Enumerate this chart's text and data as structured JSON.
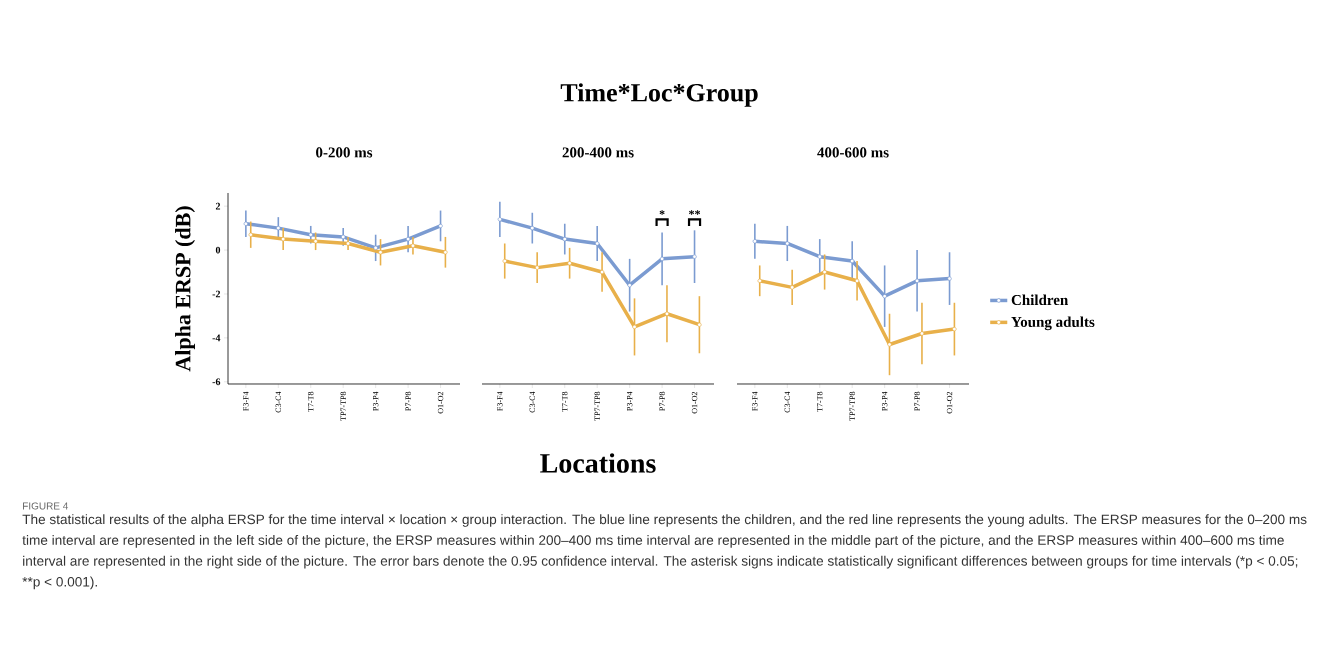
{
  "chart_data": [
    {
      "type": "line",
      "title": "0-200 ms",
      "ylabel": "Alpha ERSP (dB)",
      "categories": [
        "F3-F4",
        "C3-C4",
        "T7-T8",
        "TP7-TP8",
        "P3-P4",
        "P7-P8",
        "O1-O2"
      ],
      "ylim": [
        -6.1,
        2.6
      ],
      "yticks": [
        -6,
        -4,
        -2,
        0,
        2
      ],
      "marker": "circle",
      "line_style": "solid",
      "series": [
        {
          "color": "#7b9bd1",
          "values": [
            1.2,
            1.0,
            0.7,
            0.6,
            0.1,
            0.5,
            1.1
          ],
          "errors": [
            0.6,
            0.5,
            0.4,
            0.4,
            0.6,
            0.6,
            0.7
          ]
        },
        {
          "color": "#e8b04a",
          "values": [
            0.7,
            0.5,
            0.4,
            0.3,
            -0.1,
            0.2,
            -0.1
          ],
          "errors": [
            0.6,
            0.5,
            0.4,
            0.3,
            0.6,
            0.4,
            0.7
          ]
        }
      ],
      "annotations": [
        "Time*Loc*Group",
        "FIGURE 4",
        "The statistical results of the alpha ERSP for the time interval × location × group interaction. The blue line represents the children, and the red line represents the young adults. The ERSP measures for the 0–200 ms time interval are represented in the left side of the picture, the ERSP measures within 200–400 ms time interval are represented in the middle part of the picture, and the ERSP measures within 400–600 ms time interval are represented in the right side of the picture. The error bars denote the 0.95 confidence interval. The asterisk signs indicate statistically significant differences between groups for time intervals (*p < 0.05; **p < 0.001)."
      ]
    },
    {
      "type": "line",
      "title": "200-400 ms",
      "xlabel": "Locations",
      "categories": [
        "F3-F4",
        "C3-C4",
        "T7-T8",
        "TP7-TP8",
        "P3-P4",
        "P7-P8",
        "O1-O2"
      ],
      "yticks": [
        -6,
        -4,
        -2,
        0,
        2
      ],
      "tick_labels": "x",
      "marker": "circle",
      "line_style": "solid",
      "series": [
        {
          "color": "#7b9bd1",
          "values": [
            1.4,
            1.0,
            0.5,
            0.3,
            -1.6,
            -0.4,
            -0.3
          ],
          "errors": [
            0.8,
            0.7,
            0.7,
            0.8,
            1.2,
            1.2,
            1.2
          ]
        },
        {
          "color": "#e8b04a",
          "values": [
            -0.5,
            -0.8,
            -0.6,
            -1.0,
            -3.5,
            -2.9,
            -3.4
          ],
          "errors": [
            0.8,
            0.7,
            0.7,
            0.9,
            1.3,
            1.3,
            1.3
          ]
        }
      ],
      "annotations": [
        "*",
        "**"
      ]
    },
    {
      "type": "line",
      "title": "400-600 ms",
      "categories": [
        "F3-F4",
        "C3-C4",
        "T7-T8",
        "TP7-TP8",
        "P3-P4",
        "P7-P8",
        "O1-O2"
      ],
      "yticks": [
        -6,
        -4,
        -2,
        0,
        2
      ],
      "tick_labels": "x",
      "marker": "circle",
      "line_style": "solid",
      "legend": "right",
      "series": [
        {
          "name": "Children",
          "color": "#7b9bd1",
          "values": [
            0.4,
            0.3,
            -0.3,
            -0.5,
            -2.1,
            -1.4,
            -1.3
          ],
          "errors": [
            0.8,
            0.8,
            0.8,
            0.9,
            1.4,
            1.4,
            1.2
          ]
        },
        {
          "name": "Young adults",
          "color": "#e8b04a",
          "values": [
            -1.4,
            -1.7,
            -1.0,
            -1.4,
            -4.3,
            -3.8,
            -3.6
          ],
          "errors": [
            0.7,
            0.8,
            0.8,
            0.9,
            1.4,
            1.4,
            1.2
          ]
        }
      ]
    }
  ]
}
